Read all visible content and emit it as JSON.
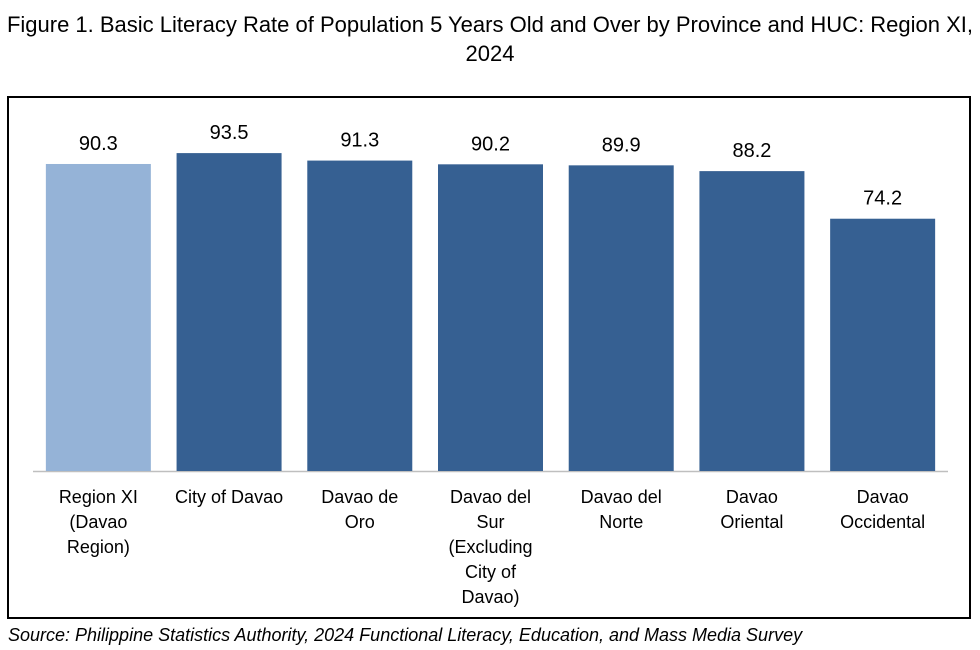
{
  "title": "Figure 1. Basic Literacy Rate of Population 5 Years Old and Over by Province and HUC: Region XI, 2024",
  "source": "Source: Philippine Statistics Authority, 2024 Functional Literacy, Education, and Mass Media Survey",
  "colors": {
    "region": "#95B3D7",
    "province": "#366092",
    "axis": "#BFBFBF"
  },
  "chart_data": {
    "type": "bar",
    "title": "Figure 1. Basic Literacy Rate of Population 5 Years Old and Over by Province and HUC: Region XI, 2024",
    "xlabel": "",
    "ylabel": "",
    "ylim": [
      0,
      100
    ],
    "grid": false,
    "legend": "none",
    "categories": [
      [
        "Region XI",
        "(Davao",
        "Region)"
      ],
      [
        "City of Davao"
      ],
      [
        "Davao de",
        "Oro"
      ],
      [
        "Davao del",
        "Sur",
        "(Excluding",
        "City of",
        "Davao)"
      ],
      [
        "Davao del",
        "Norte"
      ],
      [
        "Davao",
        "Oriental"
      ],
      [
        "Davao",
        "Occidental"
      ]
    ],
    "values": [
      90.3,
      93.5,
      91.3,
      90.2,
      89.9,
      88.2,
      74.2
    ],
    "data_labels": [
      "90.3",
      "93.5",
      "91.3",
      "90.2",
      "89.9",
      "88.2",
      "74.2"
    ]
  }
}
